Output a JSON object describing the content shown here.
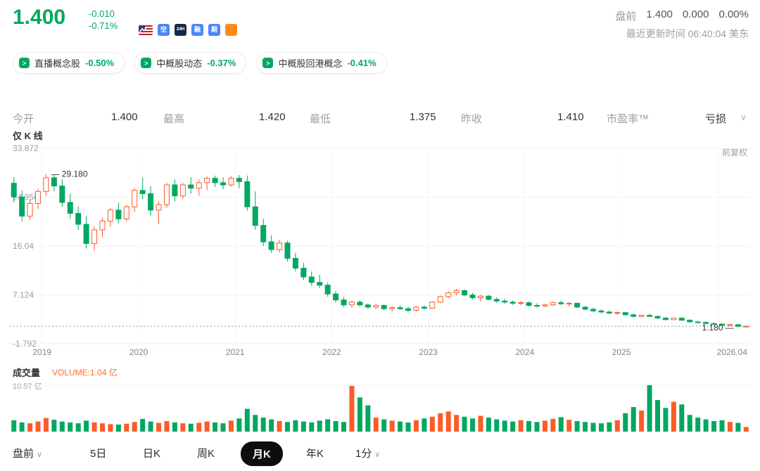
{
  "colors": {
    "up": "#fa5d28",
    "down": "#00a862",
    "green": "#00a862",
    "orange": "#ff6a2c",
    "price_line": "#7596b5"
  },
  "header": {
    "price": "1.400",
    "change": "-0.010",
    "change_pct": "-0.71%",
    "badges": [
      {
        "name": "short-badge",
        "glyph": "空",
        "bg": "#4b87f8"
      },
      {
        "name": "24h-trading-badge",
        "glyph": "24H",
        "bg": "#16294d",
        "small": true
      },
      {
        "name": "margin-badge",
        "glyph": "融",
        "bg": "#4b87f8"
      },
      {
        "name": "options-badge",
        "glyph": "期",
        "bg": "#4b87f8"
      },
      {
        "name": "chart-badge",
        "type": "zigzag",
        "bg": "#ff8a1e"
      }
    ],
    "premarket": {
      "label": "盘前",
      "price": "1.400",
      "change": "0.000",
      "pct": "0.00%"
    },
    "updated": "最近更新时间 06:40:04 美东"
  },
  "tags": [
    {
      "name": "直播概念股",
      "pct": "-0.50%"
    },
    {
      "name": "中概股动态",
      "pct": "-0.37%"
    },
    {
      "name": "中概股回港概念",
      "pct": "-0.41%"
    }
  ],
  "tag_icon_glyph": ">",
  "stats": [
    {
      "label": "今开",
      "value": "1.400"
    },
    {
      "label": "最高",
      "value": "1.420"
    },
    {
      "label": "最低",
      "value": "1.375"
    },
    {
      "label": "昨收",
      "value": "1.410"
    },
    {
      "label": "市盈率™",
      "value": "亏损",
      "chevron": "∨"
    }
  ],
  "chart": {
    "kline_only_label": "仅 K 线",
    "adjust_label": "前复权",
    "volume_title": "成交量",
    "volume_current_label": "VOLUME:1.04 亿",
    "volume_max_label": "10.57 亿"
  },
  "chart_data": {
    "type": "candlestick",
    "title": "月K 前复权",
    "y_ticks": [
      33.872,
      24.956,
      16.04,
      7.124,
      -1.792
    ],
    "y_tick_labels": [
      "33.872",
      "24.956",
      "16.04",
      "7.124",
      "-1.792"
    ],
    "x_labels": [
      "2019",
      "2020",
      "2021",
      "2022",
      "2023",
      "2024",
      "2025",
      "2026.04"
    ],
    "year_start_indices": [
      4,
      16,
      28,
      40,
      52,
      64,
      76,
      88
    ],
    "current_price_line": 1.4,
    "high_annotation": {
      "index": 4,
      "text": "29.180",
      "value": 29.18
    },
    "low_annotation": {
      "index": 90,
      "text": "1.180",
      "value": 1.18
    },
    "volume_max": 10.57,
    "candles": [
      [
        27.5,
        28.6,
        24.0,
        25.0
      ],
      [
        25.0,
        26.2,
        20.5,
        21.5
      ],
      [
        21.5,
        24.5,
        20.8,
        23.8
      ],
      [
        23.8,
        26.5,
        22.8,
        26.0
      ],
      [
        26.0,
        29.18,
        25.2,
        28.5
      ],
      [
        28.5,
        29.0,
        26.0,
        27.0
      ],
      [
        27.0,
        28.2,
        23.2,
        24.0
      ],
      [
        24.0,
        25.6,
        21.0,
        22.0
      ],
      [
        22.0,
        23.2,
        19.0,
        20.0
      ],
      [
        20.0,
        21.5,
        15.6,
        16.5
      ],
      [
        16.5,
        19.6,
        15.2,
        19.0
      ],
      [
        19.0,
        21.2,
        17.6,
        20.6
      ],
      [
        20.6,
        23.0,
        19.6,
        22.6
      ],
      [
        22.6,
        24.0,
        20.2,
        21.0
      ],
      [
        21.0,
        23.6,
        20.5,
        23.2
      ],
      [
        23.2,
        26.6,
        22.2,
        26.2
      ],
      [
        26.2,
        28.6,
        24.6,
        25.6
      ],
      [
        25.6,
        27.0,
        21.6,
        22.6
      ],
      [
        22.6,
        24.2,
        20.0,
        23.6
      ],
      [
        23.6,
        27.6,
        23.0,
        27.2
      ],
      [
        27.2,
        28.2,
        24.2,
        25.2
      ],
      [
        25.2,
        27.6,
        24.6,
        27.2
      ],
      [
        27.2,
        28.6,
        25.6,
        26.6
      ],
      [
        26.6,
        28.2,
        25.2,
        27.6
      ],
      [
        27.6,
        28.8,
        26.2,
        28.4
      ],
      [
        28.4,
        28.9,
        26.8,
        27.6
      ],
      [
        27.6,
        28.6,
        26.4,
        27.2
      ],
      [
        27.2,
        28.8,
        26.9,
        28.4
      ],
      [
        28.4,
        29.0,
        26.6,
        27.8
      ],
      [
        27.8,
        28.9,
        22.5,
        23.2
      ],
      [
        23.2,
        26.0,
        19.0,
        19.8
      ],
      [
        19.8,
        21.0,
        16.0,
        16.8
      ],
      [
        16.8,
        18.0,
        14.8,
        15.4
      ],
      [
        15.4,
        17.2,
        14.8,
        16.6
      ],
      [
        16.6,
        17.0,
        13.2,
        13.8
      ],
      [
        13.8,
        14.8,
        11.4,
        12.0
      ],
      [
        12.0,
        13.0,
        9.8,
        10.4
      ],
      [
        10.4,
        11.4,
        8.8,
        9.4
      ],
      [
        9.4,
        10.8,
        8.4,
        8.9
      ],
      [
        8.9,
        9.4,
        6.8,
        7.3
      ],
      [
        7.3,
        7.8,
        5.7,
        6.2
      ],
      [
        6.2,
        6.7,
        4.9,
        5.3
      ],
      [
        5.3,
        6.0,
        4.8,
        5.8
      ],
      [
        5.8,
        6.1,
        5.0,
        5.3
      ],
      [
        5.3,
        5.6,
        4.6,
        4.9
      ],
      [
        4.9,
        5.5,
        4.5,
        5.2
      ],
      [
        5.2,
        5.4,
        4.3,
        4.6
      ],
      [
        4.6,
        5.1,
        4.1,
        4.8
      ],
      [
        4.8,
        5.2,
        4.4,
        4.6
      ],
      [
        4.6,
        5.0,
        3.9,
        4.3
      ],
      [
        4.3,
        5.1,
        4.1,
        4.9
      ],
      [
        4.9,
        5.2,
        4.4,
        4.7
      ],
      [
        4.7,
        6.0,
        4.6,
        5.8
      ],
      [
        5.8,
        7.0,
        5.6,
        6.8
      ],
      [
        6.8,
        7.8,
        6.5,
        7.5
      ],
      [
        7.5,
        8.2,
        7.0,
        7.9
      ],
      [
        7.9,
        8.1,
        6.9,
        7.1
      ],
      [
        7.1,
        7.5,
        6.3,
        6.6
      ],
      [
        6.6,
        7.1,
        5.9,
        6.9
      ],
      [
        6.9,
        7.1,
        6.1,
        6.3
      ],
      [
        6.3,
        6.7,
        5.7,
        6.0
      ],
      [
        6.0,
        6.4,
        5.5,
        5.8
      ],
      [
        5.8,
        6.1,
        5.3,
        5.6
      ],
      [
        5.6,
        6.0,
        5.2,
        5.7
      ],
      [
        5.7,
        5.9,
        5.0,
        5.2
      ],
      [
        5.2,
        5.6,
        4.8,
        5.1
      ],
      [
        5.1,
        5.5,
        4.9,
        5.3
      ],
      [
        5.3,
        5.9,
        5.1,
        5.7
      ],
      [
        5.7,
        6.1,
        5.3,
        5.5
      ],
      [
        5.5,
        5.8,
        5.0,
        5.6
      ],
      [
        5.6,
        5.7,
        4.7,
        4.9
      ],
      [
        4.9,
        5.1,
        4.3,
        4.5
      ],
      [
        4.5,
        4.8,
        4.0,
        4.2
      ],
      [
        4.2,
        4.5,
        3.8,
        4.0
      ],
      [
        4.0,
        4.3,
        3.6,
        3.8
      ],
      [
        3.8,
        4.1,
        3.4,
        3.9
      ],
      [
        3.9,
        4.0,
        3.3,
        3.5
      ],
      [
        3.5,
        3.7,
        3.0,
        3.2
      ],
      [
        3.2,
        3.5,
        3.0,
        3.4
      ],
      [
        3.4,
        3.7,
        3.1,
        3.2
      ],
      [
        3.2,
        3.4,
        2.7,
        2.9
      ],
      [
        2.9,
        3.1,
        2.5,
        2.6
      ],
      [
        2.6,
        3.0,
        2.5,
        2.9
      ],
      [
        2.9,
        3.0,
        2.4,
        2.5
      ],
      [
        2.5,
        2.7,
        2.1,
        2.2
      ],
      [
        2.2,
        2.4,
        1.9,
        2.1
      ],
      [
        2.1,
        2.3,
        1.8,
        1.9
      ],
      [
        1.9,
        2.1,
        1.6,
        1.8
      ],
      [
        1.8,
        1.9,
        1.5,
        1.6
      ],
      [
        1.6,
        1.8,
        1.4,
        1.7
      ],
      [
        1.7,
        1.75,
        1.18,
        1.38
      ],
      [
        1.38,
        1.46,
        1.3,
        1.4
      ]
    ],
    "volumes": [
      2.6,
      2.1,
      1.9,
      2.3,
      3.1,
      2.7,
      2.3,
      2.1,
      1.9,
      2.5,
      2.1,
      1.9,
      1.7,
      1.6,
      1.8,
      2.2,
      2.9,
      2.3,
      2.0,
      2.4,
      2.1,
      1.9,
      1.8,
      2.0,
      2.3,
      2.1,
      1.9,
      2.5,
      3.0,
      5.2,
      3.8,
      3.2,
      2.8,
      2.4,
      2.2,
      2.6,
      2.3,
      2.1,
      2.5,
      2.8,
      2.4,
      2.2,
      10.4,
      7.8,
      6.0,
      3.2,
      2.8,
      2.5,
      2.3,
      2.1,
      2.6,
      3.0,
      3.4,
      4.2,
      4.6,
      3.8,
      3.4,
      3.0,
      3.6,
      3.2,
      2.8,
      2.5,
      2.3,
      2.6,
      2.4,
      2.2,
      2.5,
      2.9,
      3.3,
      2.7,
      2.4,
      2.2,
      2.0,
      1.9,
      2.1,
      2.6,
      4.2,
      5.6,
      4.8,
      10.57,
      7.2,
      5.4,
      6.8,
      6.2,
      3.8,
      3.2,
      2.8,
      2.4,
      2.6,
      2.2,
      2.0,
      1.04
    ]
  },
  "tabs": [
    {
      "label": "盘前",
      "chevron": "∨"
    },
    {
      "label": "5日"
    },
    {
      "label": "日K"
    },
    {
      "label": "周K"
    },
    {
      "label": "月K",
      "active": true
    },
    {
      "label": "年K"
    },
    {
      "label": "1分",
      "chevron": "∨"
    }
  ]
}
